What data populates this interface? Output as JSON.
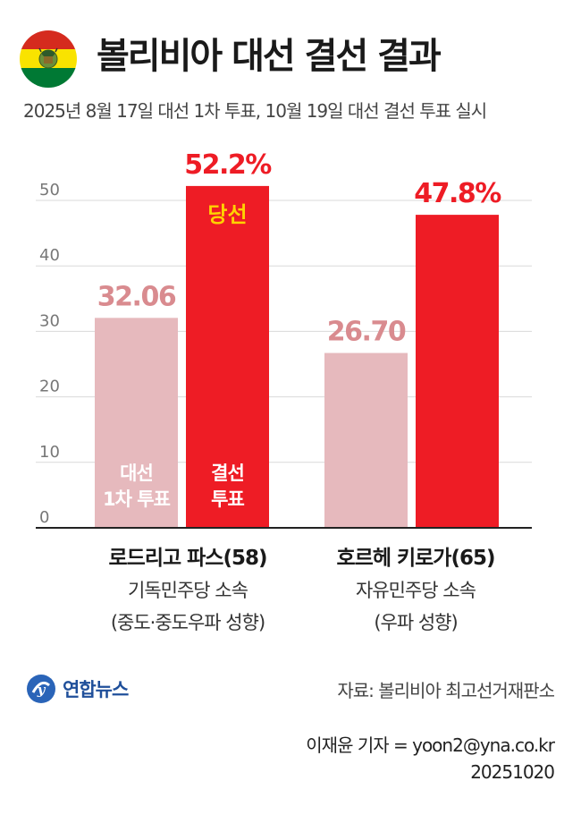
{
  "header": {
    "title": "볼리비아 대선 결선 결과",
    "subtitle": "2025년 8월 17일 대선 1차 투표, 10월 19일 대선 결선 투표 실시"
  },
  "colors": {
    "first_round": "#e6b9bd",
    "runoff": "#ee1c25",
    "first_round_label": "#d98b8f",
    "winner_badge": "#ffd200"
  },
  "chart_data": {
    "type": "bar",
    "title": "",
    "xlabel": "",
    "ylabel": "",
    "ylim": [
      0,
      55
    ],
    "yticks": [
      0,
      10,
      20,
      30,
      40,
      50
    ],
    "grid": true,
    "categories": [
      "로드리고 파스(58)",
      "호르헤 키로가(65)"
    ],
    "series": [
      {
        "name": "대선 1차 투표",
        "values": [
          32.06,
          26.7
        ],
        "labels": [
          "32.06",
          "26.70"
        ]
      },
      {
        "name": "결선 투표",
        "values": [
          52.2,
          47.8
        ],
        "labels": [
          "52.2%",
          "47.8%"
        ]
      }
    ],
    "annotations": {
      "winner": "당선",
      "inbar_first_round": [
        "대선",
        "1차 투표"
      ],
      "inbar_runoff": [
        "결선",
        "투표"
      ]
    }
  },
  "candidates": [
    {
      "name": "로드리고 파스(58)",
      "party": "기독민주당 소속",
      "lean": "(중도·중도우파 성향)"
    },
    {
      "name": "호르헤 키로가(65)",
      "party": "자유민주당 소속",
      "lean": "(우파 성향)"
    }
  ],
  "footer": {
    "logo_text": "연합뉴스",
    "source": "자료: 볼리비아 최고선거재판소",
    "reporter": "이재윤 기자 = yoon2@yna.co.kr",
    "date": "20251020"
  }
}
